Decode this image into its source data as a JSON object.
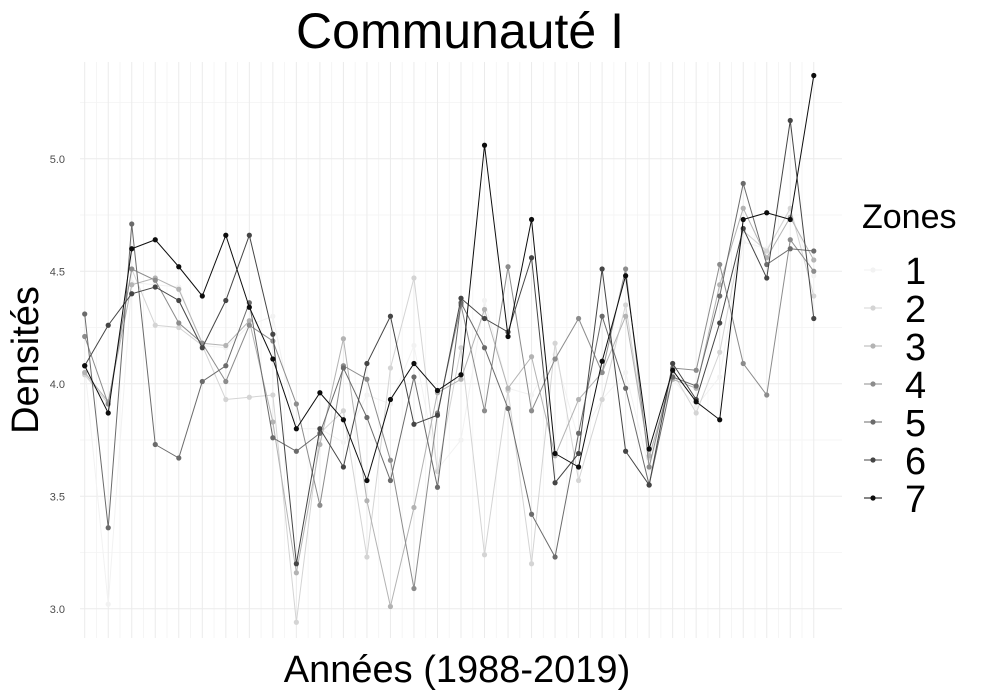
{
  "chart_data": {
    "type": "line",
    "title": "Communauté I",
    "xlabel": "Années (1988-2019)",
    "ylabel": "Densités",
    "x": [
      1988,
      1989,
      1990,
      1991,
      1992,
      1993,
      1994,
      1995,
      1996,
      1997,
      1998,
      1999,
      2000,
      2001,
      2002,
      2003,
      2004,
      2005,
      2006,
      2007,
      2008,
      2009,
      2010,
      2011,
      2012,
      2013,
      2014,
      2015,
      2016,
      2017,
      2018,
      2019
    ],
    "xlim": [
      1987.8,
      2020.2
    ],
    "ylim": [
      2.87,
      5.43
    ],
    "yticks": [
      3.0,
      3.5,
      4.0,
      4.5,
      5.0
    ],
    "ytick_labels": [
      "3.0",
      "3.5",
      "4.0",
      "4.5",
      "5.0"
    ],
    "x_tick_labels_shown": false,
    "grid": true,
    "legend": {
      "title": "Zones",
      "position": "right"
    },
    "series": [
      {
        "name": "1",
        "color": "#f2f2f2",
        "values": [
          4.08,
          3.02,
          4.45,
          4.44,
          4.43,
          4.17,
          4.16,
          4.26,
          4.3,
          3.8,
          3.8,
          3.74,
          3.95,
          3.91,
          4.17,
          3.62,
          3.75,
          4.37,
          3.98,
          3.95,
          4.13,
          3.75,
          3.93,
          4.05,
          3.62,
          4.02,
          3.9,
          4.03,
          4.63,
          4.6,
          4.77,
          4.48
        ]
      },
      {
        "name": "2",
        "color": "#d4d4d4",
        "values": [
          4.04,
          3.91,
          4.51,
          4.26,
          4.25,
          4.17,
          3.93,
          3.94,
          3.95,
          2.94,
          3.78,
          3.88,
          3.23,
          4.07,
          4.47,
          3.61,
          4.16,
          3.24,
          3.97,
          3.2,
          4.18,
          3.57,
          3.93,
          4.35,
          3.67,
          4.05,
          3.87,
          4.14,
          4.68,
          4.59,
          4.78,
          4.39
        ]
      },
      {
        "name": "3",
        "color": "#b3b3b3",
        "values": [
          4.05,
          3.92,
          4.44,
          4.47,
          4.42,
          4.18,
          4.17,
          4.28,
          3.83,
          3.16,
          3.73,
          4.2,
          3.48,
          3.01,
          3.45,
          3.96,
          4.02,
          4.33,
          3.98,
          4.12,
          3.68,
          3.93,
          4.05,
          4.3,
          3.68,
          4.02,
          3.98,
          4.44,
          4.78,
          4.56,
          4.74,
          4.55
        ]
      },
      {
        "name": "4",
        "color": "#8c8c8c",
        "values": [
          4.21,
          3.91,
          4.51,
          4.46,
          4.27,
          4.18,
          4.01,
          4.26,
          4.19,
          3.91,
          3.46,
          4.08,
          4.02,
          3.66,
          3.09,
          3.87,
          4.35,
          3.88,
          4.52,
          3.88,
          4.11,
          4.29,
          4.05,
          4.51,
          3.63,
          4.07,
          4.06,
          4.53,
          4.09,
          3.95,
          4.64,
          4.5
        ]
      },
      {
        "name": "5",
        "color": "#6b6b6b",
        "values": [
          4.31,
          3.36,
          4.71,
          3.73,
          3.67,
          4.01,
          4.08,
          4.36,
          3.76,
          3.7,
          3.78,
          4.07,
          3.85,
          3.57,
          4.03,
          3.54,
          4.36,
          4.16,
          3.89,
          3.42,
          3.23,
          3.78,
          4.3,
          3.98,
          3.55,
          4.03,
          3.99,
          4.39,
          4.89,
          4.53,
          4.6,
          4.59
        ]
      },
      {
        "name": "6",
        "color": "#454545",
        "values": [
          4.08,
          4.26,
          4.4,
          4.43,
          4.37,
          4.16,
          4.37,
          4.66,
          4.22,
          3.2,
          3.8,
          3.63,
          4.09,
          4.3,
          3.82,
          3.86,
          4.38,
          4.29,
          4.23,
          4.56,
          3.56,
          3.69,
          4.51,
          3.7,
          3.55,
          4.09,
          3.93,
          4.27,
          4.69,
          4.47,
          5.17,
          4.29
        ]
      },
      {
        "name": "7",
        "color": "#0d0d0d",
        "values": [
          4.08,
          3.87,
          4.6,
          4.64,
          4.52,
          4.39,
          4.66,
          4.34,
          4.11,
          3.8,
          3.96,
          3.84,
          3.57,
          3.93,
          4.09,
          3.97,
          4.04,
          5.06,
          4.21,
          4.73,
          3.69,
          3.63,
          4.1,
          4.48,
          3.71,
          4.06,
          3.92,
          3.84,
          4.73,
          4.76,
          4.73,
          5.37
        ]
      }
    ]
  }
}
